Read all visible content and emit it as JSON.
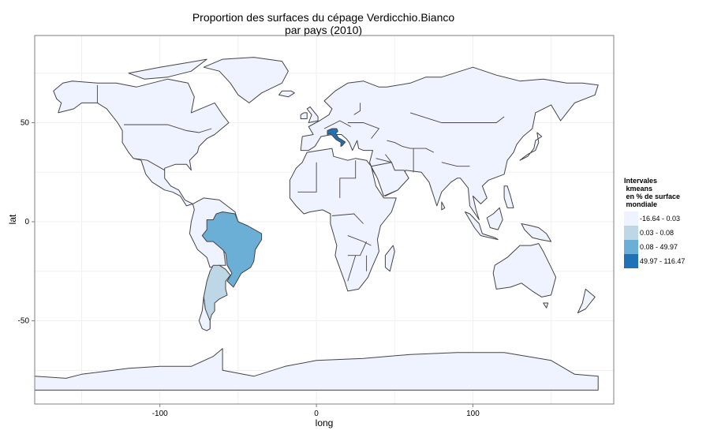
{
  "title": {
    "line1": "Proportion des surfaces du cépage Verdicchio.Bianco",
    "line2": "par pays (2010)"
  },
  "axes": {
    "xlabel": "long",
    "ylabel": "lat",
    "xticks": [
      -100,
      0,
      100
    ],
    "yticks": [
      50,
      0,
      -50
    ],
    "xlim": [
      -180,
      190
    ],
    "ylim": [
      -92,
      94
    ]
  },
  "legend": {
    "title": "Intervales\n kmeans\n en % de surface\n mondiale",
    "items": [
      {
        "label": "-16.64 - 0.03",
        "color": "#eff3ff"
      },
      {
        "label": "0.03 - 0.08",
        "color": "#bdd7e7"
      },
      {
        "label": "0.08 - 49.97",
        "color": "#6baed6"
      },
      {
        "label": "49.97 - 116.47",
        "color": "#2171b5"
      }
    ]
  },
  "colors": {
    "land": "#eff3ff",
    "border": "#444444",
    "panel_border": "#7f7f7f",
    "grid": "#f0f0f0"
  },
  "chart_data": {
    "type": "choropleth",
    "regions": [
      {
        "country": "Italy",
        "class": "49.97 - 116.47"
      },
      {
        "country": "Brazil",
        "class": "0.08 - 49.97"
      },
      {
        "country": "Argentina",
        "class": "0.03 - 0.08"
      },
      {
        "country": "all other countries",
        "class": "-16.64 - 0.03"
      }
    ]
  }
}
